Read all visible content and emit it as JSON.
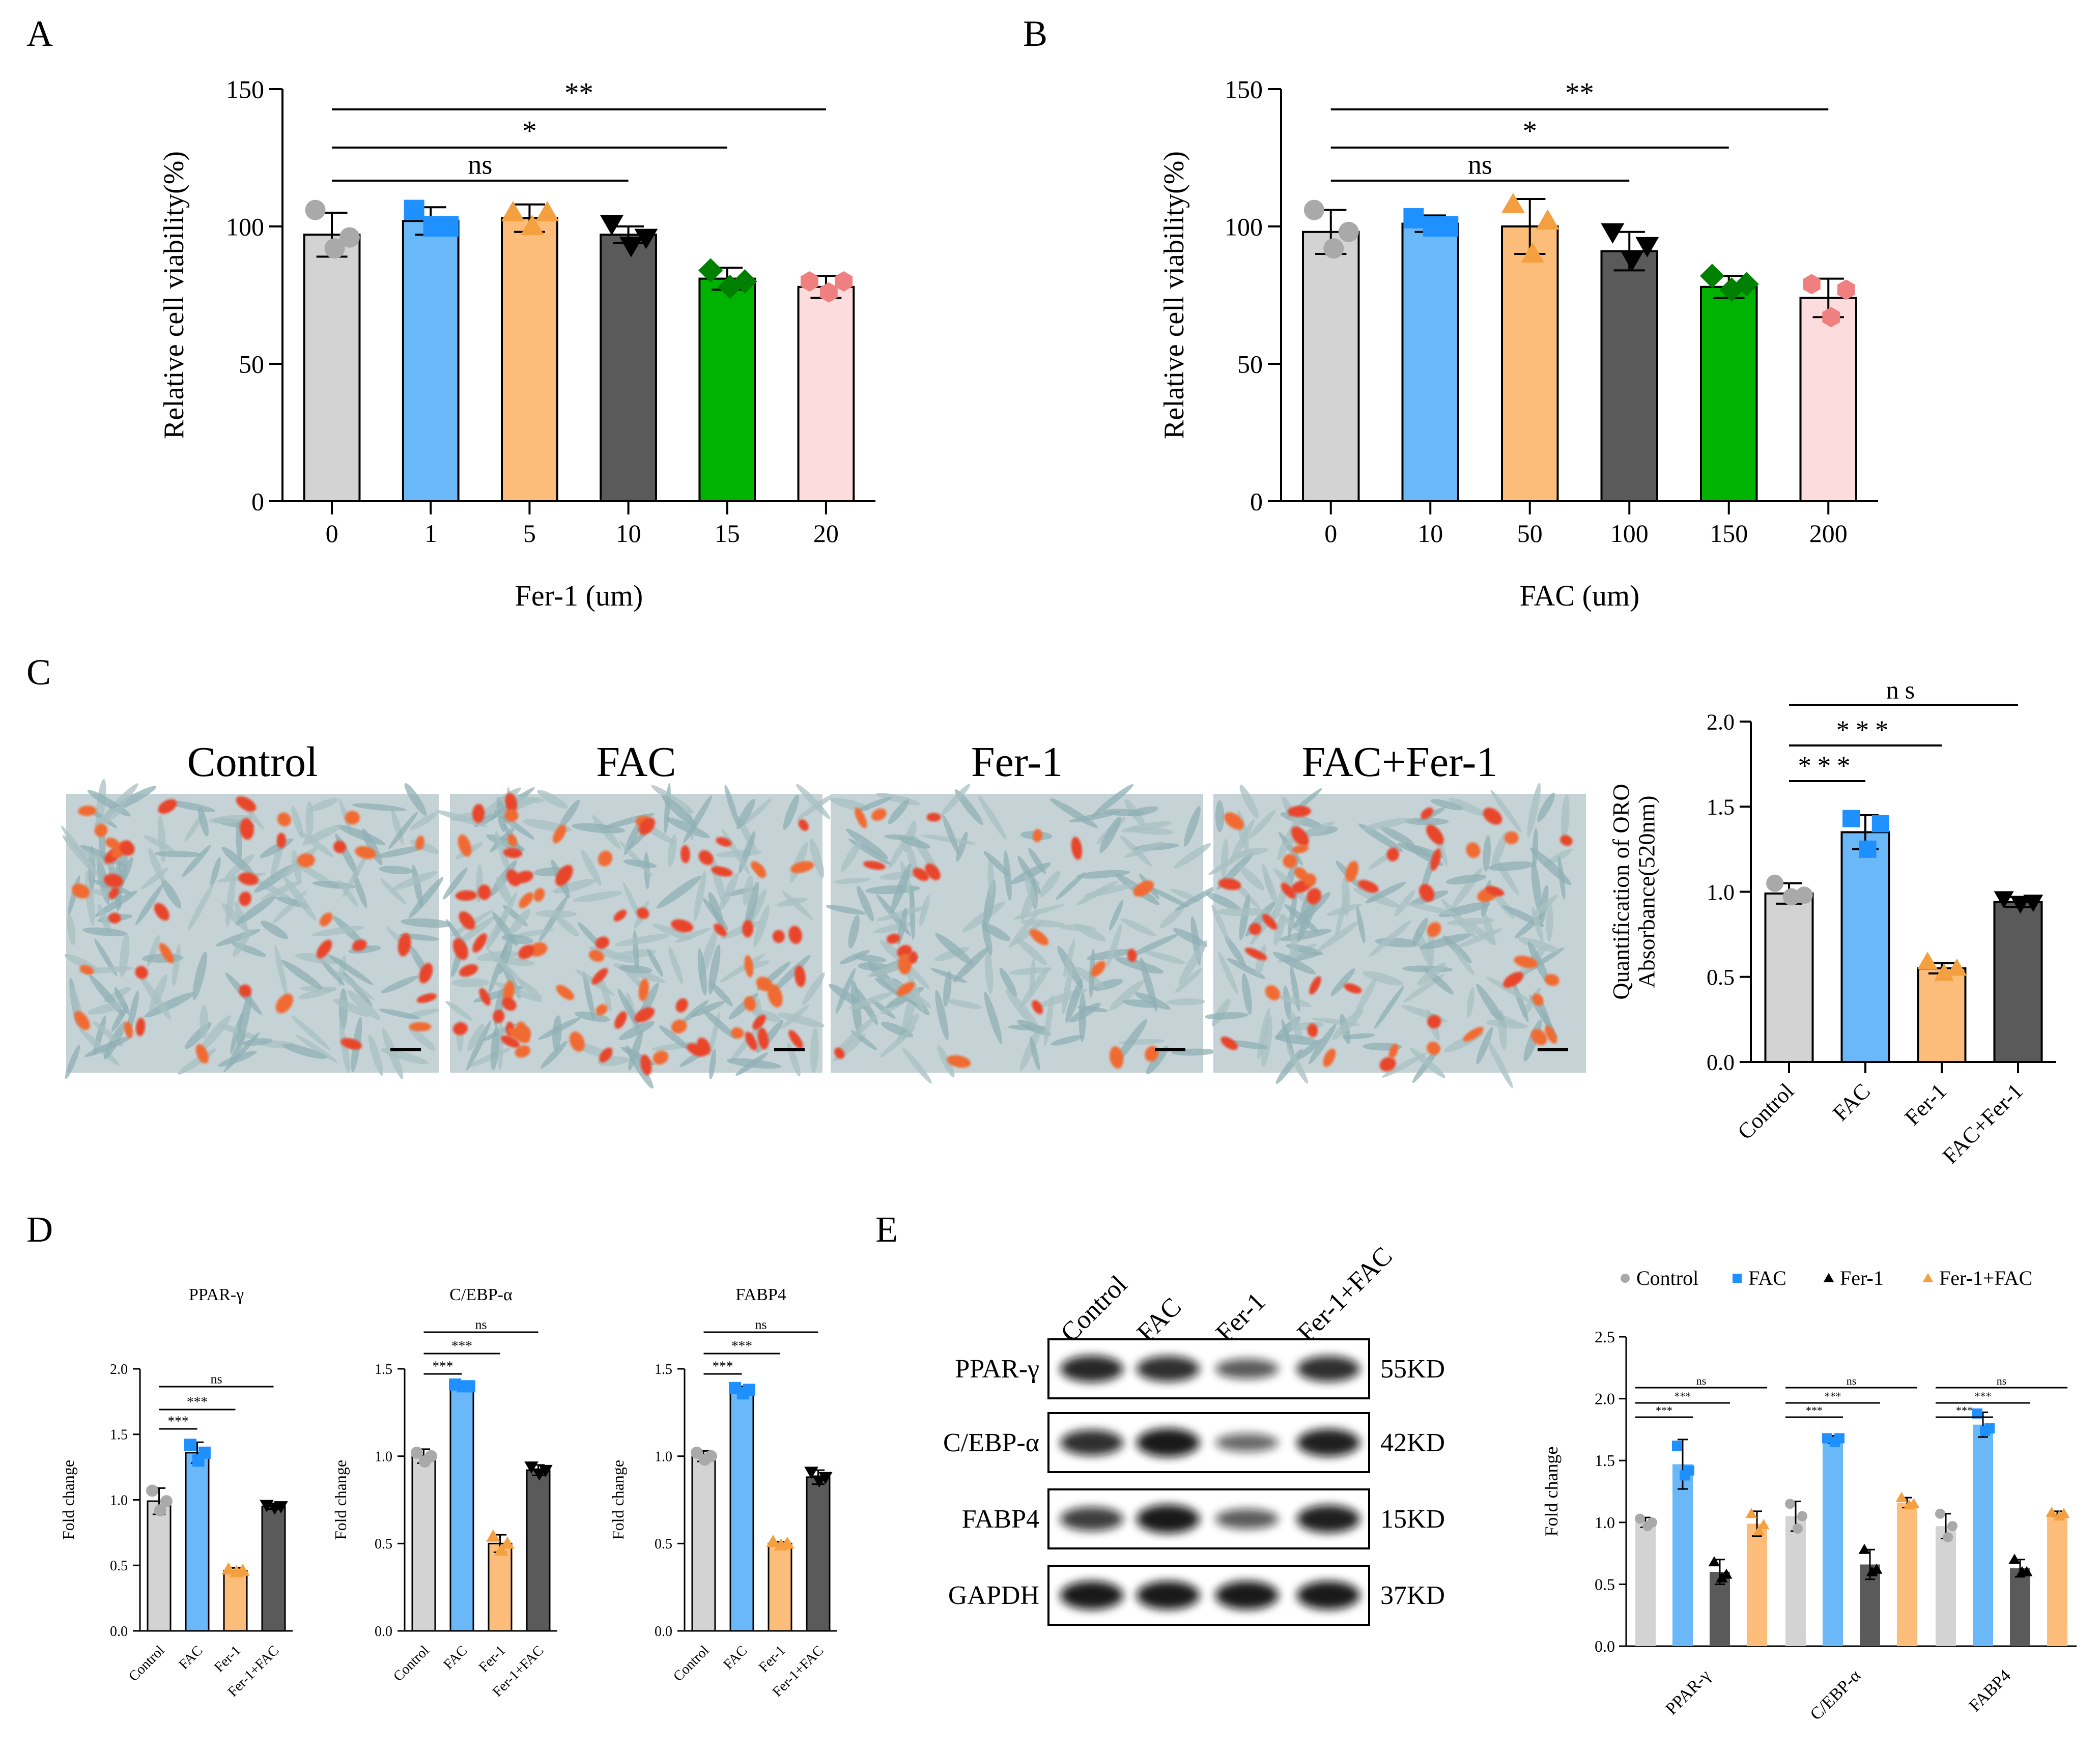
{
  "colors": {
    "gray": "#d3d3d3",
    "blue": "#6ab8f7",
    "orange": "#fbbd79",
    "dark": "#5a5a5a",
    "green": "#00b300",
    "pink": "#fcdcdc",
    "mk_gray": "#a9a9a9",
    "mk_blue": "#1e90ff",
    "mk_orange": "#f5a040",
    "mk_dark": "#000000",
    "mk_green": "#008000",
    "mk_pink": "#f08080"
  },
  "panels": {
    "A": "A",
    "B": "B",
    "C": "C",
    "D": "D",
    "E": "E"
  },
  "micrographs": {
    "labels": [
      "Control",
      "FAC",
      "Fer-1",
      "FAC+Fer-1"
    ],
    "red_density": [
      40,
      75,
      22,
      45
    ]
  },
  "blot": {
    "lanes": [
      "Control",
      "FAC",
      "Fer-1",
      "Fer-1+FAC"
    ],
    "rows": [
      {
        "protein": "PPAR-γ",
        "kd": "55KD",
        "intensity": [
          0.9,
          0.85,
          0.55,
          0.85
        ]
      },
      {
        "protein": "C/EBP-α",
        "kd": "42KD",
        "intensity": [
          0.85,
          1.0,
          0.45,
          0.95
        ]
      },
      {
        "protein": "FABP4",
        "kd": "15KD",
        "intensity": [
          0.75,
          1.0,
          0.55,
          0.95
        ]
      },
      {
        "protein": "GAPDH",
        "kd": "37KD",
        "intensity": [
          1.0,
          1.0,
          1.0,
          1.0
        ]
      }
    ]
  },
  "chart_data": [
    {
      "type": "bar",
      "id": "A",
      "categories": [
        "0",
        "1",
        "5",
        "10",
        "15",
        "20"
      ],
      "values": [
        97,
        102,
        103,
        97,
        81,
        78
      ],
      "errors": [
        8,
        5,
        5,
        3,
        4,
        4
      ],
      "points": [
        [
          106,
          92,
          96
        ],
        [
          106,
          100,
          100
        ],
        [
          105,
          100,
          105
        ],
        [
          101,
          93,
          96
        ],
        [
          84,
          78,
          80
        ],
        [
          80,
          76,
          80
        ]
      ],
      "xlabel": "Fer-1 (um)",
      "ylabel": "Relative cell viability(%)",
      "ylim": [
        0,
        150
      ],
      "yticks": [
        0,
        50,
        100,
        150
      ],
      "sig": [
        {
          "from": 0,
          "to": 5,
          "label": "**"
        },
        {
          "from": 0,
          "to": 4,
          "label": "*"
        },
        {
          "from": 0,
          "to": 3,
          "label": "ns"
        }
      ]
    },
    {
      "type": "bar",
      "id": "B",
      "categories": [
        "0",
        "10",
        "50",
        "100",
        "150",
        "200"
      ],
      "values": [
        98,
        101,
        100,
        91,
        78,
        74
      ],
      "errors": [
        8,
        3,
        10,
        7,
        4,
        7
      ],
      "points": [
        [
          106,
          92,
          98
        ],
        [
          103,
          100,
          100
        ],
        [
          108,
          90,
          102
        ],
        [
          98,
          88,
          93
        ],
        [
          82,
          77,
          79
        ],
        [
          79,
          67,
          77
        ]
      ],
      "xlabel": "FAC (um)",
      "ylabel": "Relative cell viability(%)",
      "ylim": [
        0,
        150
      ],
      "yticks": [
        0,
        50,
        100,
        150
      ],
      "sig": [
        {
          "from": 0,
          "to": 5,
          "label": "**"
        },
        {
          "from": 0,
          "to": 4,
          "label": "*"
        },
        {
          "from": 0,
          "to": 3,
          "label": "ns"
        }
      ]
    },
    {
      "type": "bar",
      "id": "C",
      "categories": [
        "Control",
        "FAC",
        "Fer-1",
        "FAC+Fer-1"
      ],
      "values": [
        0.99,
        1.35,
        0.55,
        0.94
      ],
      "errors": [
        0.06,
        0.1,
        0.03,
        0.03
      ],
      "points": [
        [
          1.05,
          0.97,
          0.98
        ],
        [
          1.43,
          1.25,
          1.4
        ],
        [
          0.59,
          0.52,
          0.55
        ],
        [
          0.96,
          0.93,
          0.94
        ]
      ],
      "xlabel": "",
      "ylabel": "Quantification of ORO\nAbsorbance(520nm)",
      "ylim": [
        0,
        2
      ],
      "yticks": [
        "0.0",
        "0.5",
        "1.0",
        "1.5",
        "2.0"
      ],
      "sig": [
        {
          "from": 0,
          "to": 3,
          "label": "ns"
        },
        {
          "from": 0,
          "to": 2,
          "label": "***"
        },
        {
          "from": 0,
          "to": 1,
          "label": "***"
        }
      ]
    },
    {
      "type": "bar",
      "id": "D1",
      "title": "PPAR-γ",
      "categories": [
        "Control",
        "FAC",
        "Fer-1",
        "Fer-1+FAC"
      ],
      "values": [
        0.99,
        1.36,
        0.46,
        0.95
      ],
      "errors": [
        0.1,
        0.08,
        0.02,
        0.02
      ],
      "points": [
        [
          1.07,
          0.92,
          0.99
        ],
        [
          1.42,
          1.3,
          1.36
        ],
        [
          0.47,
          0.45,
          0.46
        ],
        [
          0.96,
          0.94,
          0.95
        ]
      ],
      "ylabel": "Fold change",
      "ylim": [
        0,
        2
      ],
      "yticks": [
        "0.0",
        "0.5",
        "1.0",
        "1.5",
        "2.0"
      ],
      "sig": [
        {
          "from": 0,
          "to": 3,
          "label": "ns"
        },
        {
          "from": 0,
          "to": 2,
          "label": "***"
        },
        {
          "from": 0,
          "to": 1,
          "label": "***"
        }
      ]
    },
    {
      "type": "bar",
      "id": "D2",
      "title": "C/EBP-α",
      "categories": [
        "Control",
        "FAC",
        "Fer-1",
        "Fer-1+FAC"
      ],
      "values": [
        1.0,
        1.4,
        0.5,
        0.92
      ],
      "errors": [
        0.04,
        0.01,
        0.05,
        0.03
      ],
      "points": [
        [
          1.02,
          0.97,
          1.0
        ],
        [
          1.41,
          1.4,
          1.4
        ],
        [
          0.54,
          0.46,
          0.5
        ],
        [
          0.94,
          0.9,
          0.92
        ]
      ],
      "ylabel": "Fold change",
      "ylim": [
        0,
        1.5
      ],
      "yticks": [
        "0.0",
        "0.5",
        "1.0",
        "1.5"
      ],
      "sig": [
        {
          "from": 0,
          "to": 3,
          "label": "ns"
        },
        {
          "from": 0,
          "to": 2,
          "label": "***"
        },
        {
          "from": 0,
          "to": 1,
          "label": "***"
        }
      ]
    },
    {
      "type": "bar",
      "id": "D3",
      "title": "FABP4",
      "categories": [
        "Control",
        "FAC",
        "Fer-1",
        "Fer-1+FAC"
      ],
      "values": [
        1.0,
        1.38,
        0.5,
        0.88
      ],
      "errors": [
        0.03,
        0.02,
        0.01,
        0.04
      ],
      "points": [
        [
          1.02,
          0.98,
          1.0
        ],
        [
          1.39,
          1.36,
          1.38
        ],
        [
          0.51,
          0.49,
          0.5
        ],
        [
          0.91,
          0.86,
          0.88
        ]
      ],
      "ylabel": "Fold change",
      "ylim": [
        0,
        1.5
      ],
      "yticks": [
        "0.0",
        "0.5",
        "1.0",
        "1.5"
      ],
      "sig": [
        {
          "from": 0,
          "to": 3,
          "label": "ns"
        },
        {
          "from": 0,
          "to": 2,
          "label": "***"
        },
        {
          "from": 0,
          "to": 1,
          "label": "***"
        }
      ]
    },
    {
      "type": "bar",
      "id": "E2",
      "groups": [
        "PPAR-γ",
        "C/EBP-α",
        "FABP4"
      ],
      "legend": [
        "Control",
        "FAC",
        "Fer-1",
        "Fer-1+FAC"
      ],
      "series": [
        {
          "name": "Control",
          "values": [
            1.0,
            1.05,
            0.97
          ],
          "errors": [
            0.04,
            0.12,
            0.1
          ],
          "points": [
            [
              1.03,
              0.97,
              1.0
            ],
            [
              1.15,
              0.95,
              1.05
            ],
            [
              1.07,
              0.88,
              0.97
            ]
          ]
        },
        {
          "name": "FAC",
          "values": [
            1.47,
            1.67,
            1.79
          ],
          "errors": [
            0.2,
            0.03,
            0.1
          ],
          "points": [
            [
              1.62,
              1.38,
              1.42
            ],
            [
              1.68,
              1.65,
              1.68
            ],
            [
              1.88,
              1.74,
              1.76
            ]
          ]
        },
        {
          "name": "Fer-1",
          "values": [
            0.6,
            0.66,
            0.63
          ],
          "errors": [
            0.1,
            0.12,
            0.07
          ],
          "points": [
            [
              0.68,
              0.55,
              0.58
            ],
            [
              0.78,
              0.6,
              0.62
            ],
            [
              0.7,
              0.6,
              0.6
            ]
          ]
        },
        {
          "name": "Fer-1+FAC",
          "values": [
            0.99,
            1.16,
            1.07
          ],
          "errors": [
            0.1,
            0.04,
            0.02
          ],
          "points": [
            [
              1.07,
              0.93,
              0.98
            ],
            [
              1.2,
              1.14,
              1.15
            ],
            [
              1.08,
              1.05,
              1.07
            ]
          ]
        }
      ],
      "ylabel": "Fold change",
      "ylim": [
        0,
        2.5
      ],
      "yticks": [
        "0.0",
        "0.5",
        "1.0",
        "1.5",
        "2.0",
        "2.5"
      ],
      "sig_labels": [
        "***",
        "***",
        "ns"
      ]
    }
  ]
}
